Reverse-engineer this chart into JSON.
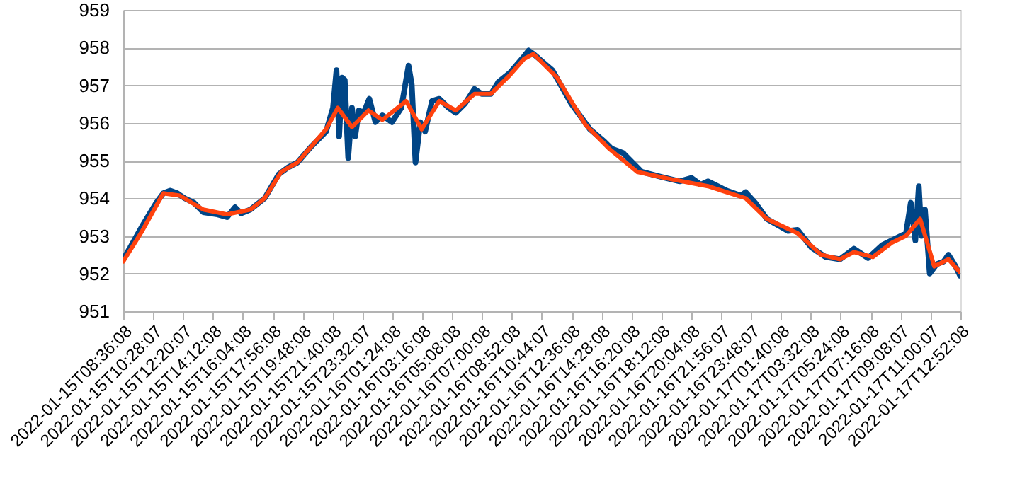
{
  "chart_data": {
    "type": "line",
    "xlim": [
      "2022-01-15T08:36",
      "2022-01-17T12:53"
    ],
    "xticks": [
      "2022-01-15T08:36:08",
      "2022-01-15T10:28:07",
      "2022-01-15T12:20:07",
      "2022-01-15T14:12:08",
      "2022-01-15T16:04:08",
      "2022-01-15T17:56:08",
      "2022-01-15T19:48:08",
      "2022-01-15T21:40:08",
      "2022-01-15T23:32:07",
      "2022-01-16T01:24:08",
      "2022-01-16T03:16:08",
      "2022-01-16T05:08:08",
      "2022-01-16T07:00:08",
      "2022-01-16T08:52:08",
      "2022-01-16T10:44:07",
      "2022-01-16T12:36:08",
      "2022-01-16T14:28:08",
      "2022-01-16T16:20:08",
      "2022-01-16T18:12:08",
      "2022-01-16T20:04:08",
      "2022-01-16T21:56:07",
      "2022-01-16T23:48:07",
      "2022-01-17T01:40:08",
      "2022-01-17T03:32:08",
      "2022-01-17T05:24:08",
      "2022-01-17T07:16:08",
      "2022-01-17T09:08:07",
      "2022-01-17T11:00:07",
      "2022-01-17T12:52:08"
    ],
    "ylim": [
      951,
      959
    ],
    "yticks": [
      951,
      952,
      953,
      954,
      955,
      956,
      957,
      958,
      959
    ],
    "grid": "y",
    "line_style": "solid",
    "series": [
      {
        "color": "#004586",
        "x": [
          "2022-01-15T08:36",
          "2022-01-15T09:02",
          "2022-01-15T09:47",
          "2022-01-15T10:40",
          "2022-01-15T11:06",
          "2022-01-15T11:32",
          "2022-01-15T11:59",
          "2022-01-15T12:26",
          "2022-01-15T13:01",
          "2022-01-15T13:36",
          "2022-01-15T14:29",
          "2022-01-15T15:05",
          "2022-01-15T15:35",
          "2022-01-15T15:58",
          "2022-01-15T16:33",
          "2022-01-15T17:26",
          "2022-01-15T18:19",
          "2022-01-15T18:54",
          "2022-01-15T19:29",
          "2022-01-15T20:23",
          "2022-01-15T21:16",
          "2022-01-15T21:42",
          "2022-01-15T21:55",
          "2022-01-15T22:05",
          "2022-01-15T22:16",
          "2022-01-15T22:26",
          "2022-01-15T22:39",
          "2022-01-15T22:53",
          "2022-01-15T23:05",
          "2022-01-15T23:19",
          "2022-01-15T23:37",
          "2022-01-15T23:58",
          "2022-01-16T00:21",
          "2022-01-16T00:47",
          "2022-01-16T01:23",
          "2022-01-16T01:58",
          "2022-01-16T02:25",
          "2022-01-16T02:37",
          "2022-01-16T02:51",
          "2022-01-16T03:09",
          "2022-01-16T03:27",
          "2022-01-16T03:53",
          "2022-01-16T04:20",
          "2022-01-16T04:55",
          "2022-01-16T05:22",
          "2022-01-16T05:57",
          "2022-01-16T06:32",
          "2022-01-16T06:59",
          "2022-01-16T07:34",
          "2022-01-16T08:01",
          "2022-01-16T08:45",
          "2022-01-16T09:38",
          "2022-01-16T09:55",
          "2022-01-16T10:13",
          "2022-01-16T11:24",
          "2022-01-16T12:34",
          "2022-01-16T13:45",
          "2022-01-16T14:38",
          "2022-01-16T15:05",
          "2022-01-16T15:49",
          "2022-01-16T16:59",
          "2022-01-16T18:10",
          "2022-01-16T19:21",
          "2022-01-16T20:05",
          "2022-01-16T20:40",
          "2022-01-16T21:07",
          "2022-01-16T22:17",
          "2022-01-16T23:10",
          "2022-01-16T23:28",
          "2022-01-17T00:04",
          "2022-01-17T00:48",
          "2022-01-17T02:07",
          "2022-01-17T02:43",
          "2022-01-17T03:35",
          "2022-01-17T04:28",
          "2022-01-17T05:22",
          "2022-01-17T06:14",
          "2022-01-17T07:07",
          "2022-01-17T08:01",
          "2022-01-17T08:53",
          "2022-01-17T09:29",
          "2022-01-17T09:47",
          "2022-01-17T10:04",
          "2022-01-17T10:17",
          "2022-01-17T10:27",
          "2022-01-17T10:40",
          "2022-01-17T10:58",
          "2022-01-17T11:24",
          "2022-01-17T11:50",
          "2022-01-17T12:08",
          "2022-01-17T12:35",
          "2022-01-17T12:52"
        ],
        "values": [
          952.38,
          952.69,
          953.26,
          953.88,
          954.13,
          954.2,
          954.13,
          954.0,
          953.88,
          953.63,
          953.57,
          953.5,
          953.76,
          953.6,
          953.7,
          954.0,
          954.64,
          954.82,
          954.95,
          955.39,
          955.77,
          956.4,
          957.4,
          955.64,
          957.2,
          957.14,
          955.07,
          956.4,
          955.64,
          956.33,
          956.27,
          956.64,
          956.02,
          956.2,
          956.02,
          956.4,
          957.52,
          957.02,
          954.95,
          956.02,
          955.77,
          956.58,
          956.64,
          956.4,
          956.27,
          956.52,
          956.9,
          956.77,
          956.77,
          957.08,
          957.33,
          957.77,
          957.92,
          957.83,
          957.4,
          956.52,
          955.83,
          955.51,
          955.32,
          955.2,
          954.7,
          954.57,
          954.45,
          954.54,
          954.36,
          954.45,
          954.2,
          954.07,
          954.16,
          953.88,
          953.45,
          953.13,
          953.16,
          952.69,
          952.44,
          952.38,
          952.66,
          952.41,
          952.76,
          952.94,
          953.07,
          953.88,
          952.88,
          954.32,
          953.0,
          953.7,
          952.0,
          952.25,
          952.32,
          952.5,
          952.19,
          951.94
        ]
      },
      {
        "color": "#ff420e",
        "x": [
          "2022-01-15T08:36",
          "2022-01-15T09:47",
          "2022-01-15T11:06",
          "2022-01-15T12:08",
          "2022-01-15T13:36",
          "2022-01-15T15:05",
          "2022-01-15T16:33",
          "2022-01-15T17:26",
          "2022-01-15T18:28",
          "2022-01-15T19:29",
          "2022-01-15T21:16",
          "2022-01-15T22:00",
          "2022-01-15T22:53",
          "2022-01-15T23:55",
          "2022-01-16T00:47",
          "2022-01-16T02:16",
          "2022-01-16T03:14",
          "2022-01-16T04:20",
          "2022-01-16T05:22",
          "2022-01-16T06:32",
          "2022-01-16T07:34",
          "2022-01-16T08:45",
          "2022-01-16T09:38",
          "2022-01-16T10:13",
          "2022-01-16T11:41",
          "2022-01-16T13:28",
          "2022-01-16T14:56",
          "2022-01-16T16:42",
          "2022-01-16T18:46",
          "2022-01-16T21:07",
          "2022-01-16T23:28",
          "2022-01-17T00:48",
          "2022-01-17T02:43",
          "2022-01-17T04:11",
          "2022-01-17T05:22",
          "2022-01-17T06:14",
          "2022-01-17T07:25",
          "2022-01-17T08:36",
          "2022-01-17T09:29",
          "2022-01-17T10:22",
          "2022-01-17T11:15",
          "2022-01-17T12:08",
          "2022-01-17T12:52"
        ],
        "values": [
          952.32,
          953.13,
          954.13,
          954.07,
          953.7,
          953.57,
          953.7,
          954.0,
          954.7,
          954.95,
          955.83,
          956.4,
          955.89,
          956.33,
          956.08,
          956.58,
          955.83,
          956.58,
          956.33,
          956.77,
          956.77,
          957.27,
          957.7,
          957.83,
          957.21,
          955.95,
          955.32,
          954.7,
          954.51,
          954.32,
          954.0,
          953.45,
          953.07,
          952.5,
          952.38,
          952.57,
          952.44,
          952.82,
          953.0,
          953.45,
          952.19,
          952.38,
          952.03
        ]
      }
    ]
  }
}
